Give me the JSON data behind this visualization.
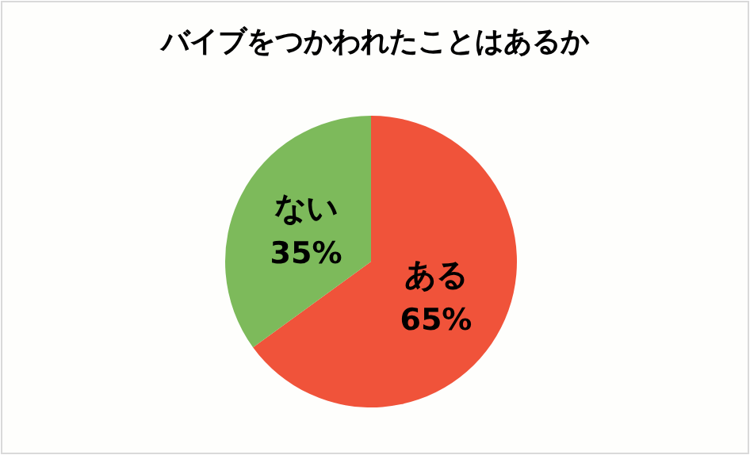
{
  "chart_data": {
    "type": "pie",
    "title": "バイブをつかわれたことはあるか",
    "categories": [
      "ある",
      "ない"
    ],
    "values": [
      65,
      35
    ],
    "colors": [
      "#f0533a",
      "#7dba5b"
    ],
    "value_labels": [
      "65%",
      "35%"
    ]
  }
}
